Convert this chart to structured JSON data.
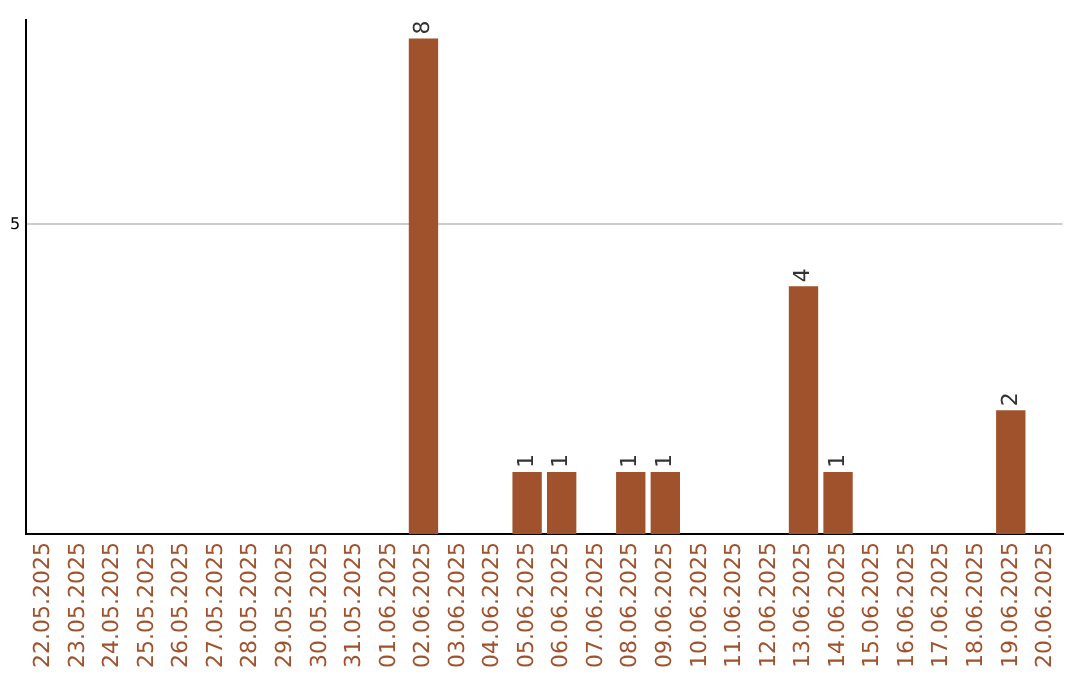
{
  "chart_data": {
    "type": "bar",
    "categories": [
      "22.05.2025",
      "23.05.2025",
      "24.05.2025",
      "25.05.2025",
      "26.05.2025",
      "27.05.2025",
      "28.05.2025",
      "29.05.2025",
      "30.05.2025",
      "31.05.2025",
      "01.06.2025",
      "02.06.2025",
      "03.06.2025",
      "04.06.2025",
      "05.06.2025",
      "06.06.2025",
      "07.06.2025",
      "08.06.2025",
      "09.06.2025",
      "10.06.2025",
      "11.06.2025",
      "12.06.2025",
      "13.06.2025",
      "14.06.2025",
      "15.06.2025",
      "16.06.2025",
      "17.06.2025",
      "18.06.2025",
      "19.06.2025",
      "20.06.2025"
    ],
    "values": [
      0,
      0,
      0,
      0,
      0,
      0,
      0,
      0,
      0,
      0,
      0,
      8,
      0,
      0,
      1,
      1,
      0,
      1,
      1,
      0,
      0,
      0,
      4,
      1,
      0,
      0,
      0,
      0,
      2,
      0
    ],
    "value_labels": [
      null,
      null,
      null,
      null,
      null,
      null,
      null,
      null,
      null,
      null,
      null,
      "8",
      null,
      null,
      "1",
      "1",
      null,
      "1",
      "1",
      null,
      null,
      null,
      "4",
      "1",
      null,
      null,
      null,
      null,
      "2",
      null
    ],
    "color": "#a0522d",
    "ylim": [
      0,
      8.3
    ],
    "yticks": [
      5
    ],
    "grid": "y"
  }
}
